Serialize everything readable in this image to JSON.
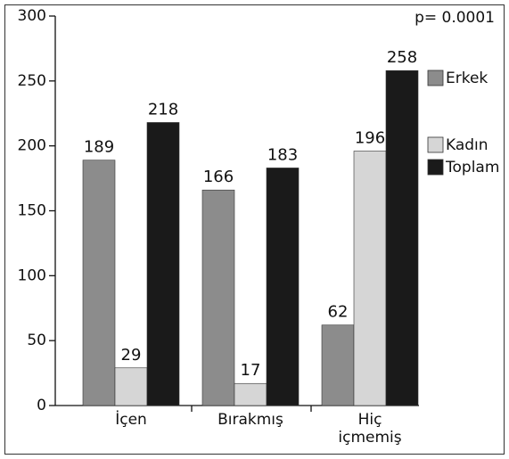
{
  "chart_data": {
    "type": "bar",
    "annotation": "p= 0.0001",
    "categories": [
      "İçen",
      "Bırakmış",
      "Hiç içmemiş"
    ],
    "series": [
      {
        "name": "Erkek",
        "color": "#8c8c8c",
        "values": [
          189,
          166,
          62
        ]
      },
      {
        "name": "Kadın",
        "color": "#d6d6d6",
        "values": [
          29,
          17,
          196
        ]
      },
      {
        "name": "Toplam",
        "color": "#1a1a1a",
        "values": [
          218,
          183,
          258
        ]
      }
    ],
    "ylim": [
      0,
      300
    ],
    "yticks": [
      0,
      50,
      100,
      150,
      200,
      250,
      300
    ],
    "legend": "right"
  }
}
